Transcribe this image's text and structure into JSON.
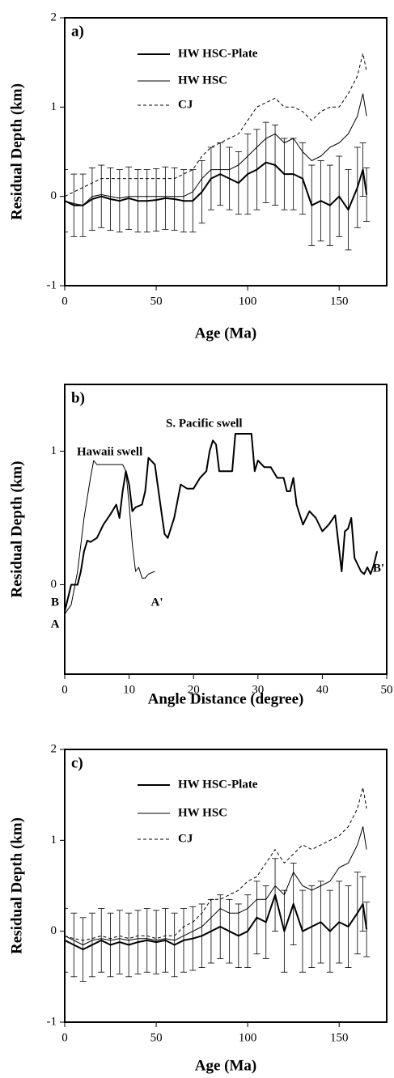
{
  "chart_data": [
    {
      "type": "line",
      "title": "a)",
      "xlabel": "Age (Ma)",
      "ylabel": "Residual Depth (km)",
      "xlim": [
        0,
        176
      ],
      "ylim": [
        -1,
        2
      ],
      "xticks": [
        0,
        50,
        100,
        150
      ],
      "yticks": [
        -1,
        0,
        1,
        2
      ],
      "x": [
        0,
        5,
        10,
        15,
        20,
        25,
        30,
        35,
        40,
        45,
        50,
        55,
        60,
        65,
        70,
        75,
        80,
        85,
        90,
        95,
        100,
        105,
        110,
        115,
        120,
        125,
        130,
        135,
        140,
        145,
        150,
        155,
        160,
        163,
        165
      ],
      "series": [
        {
          "name": "HW HSC-Plate",
          "color": "#000000",
          "linestyle": "solid",
          "values": [
            -0.05,
            -0.1,
            -0.1,
            -0.03,
            0,
            -0.03,
            -0.05,
            -0.02,
            -0.05,
            -0.05,
            -0.04,
            -0.02,
            -0.03,
            -0.05,
            -0.05,
            0.05,
            0.2,
            0.25,
            0.2,
            0.15,
            0.25,
            0.3,
            0.38,
            0.35,
            0.25,
            0.25,
            0.2,
            -0.1,
            -0.05,
            -0.1,
            0,
            -0.15,
            0.1,
            0.3,
            0.02
          ],
          "errors": [
            0.35,
            0.35,
            0.35,
            0.35,
            0.35,
            0.35,
            0.35,
            0.35,
            0.35,
            0.35,
            0.35,
            0.35,
            0.35,
            0.35,
            0.35,
            0.35,
            0.35,
            0.35,
            0.35,
            0.35,
            0.45,
            0.45,
            0.45,
            0.45,
            0.4,
            0.4,
            0.4,
            0.45,
            0.45,
            0.45,
            0.45,
            0.45,
            0.45,
            0.3,
            0.3
          ]
        },
        {
          "name": "HW HSC",
          "color": "#000000",
          "linestyle": "solid",
          "values": [
            -0.05,
            -0.08,
            -0.1,
            0,
            0.02,
            0,
            -0.02,
            0,
            0,
            0,
            0,
            0,
            0,
            0,
            0.05,
            0.2,
            0.3,
            0.3,
            0.3,
            0.35,
            0.45,
            0.55,
            0.65,
            0.7,
            0.6,
            0.65,
            0.5,
            0.4,
            0.45,
            0.55,
            0.6,
            0.7,
            0.9,
            1.15,
            0.9
          ]
        },
        {
          "name": "CJ",
          "color": "#000000",
          "linestyle": "dashed",
          "values": [
            0,
            0.05,
            0.1,
            0.15,
            0.2,
            0.2,
            0.2,
            0.2,
            0.2,
            0.2,
            0.2,
            0.2,
            0.2,
            0.25,
            0.3,
            0.45,
            0.55,
            0.6,
            0.65,
            0.7,
            0.85,
            1,
            1.05,
            1.1,
            1,
            1,
            0.95,
            0.85,
            0.95,
            1,
            1,
            1.15,
            1.35,
            1.6,
            1.4
          ]
        }
      ]
    },
    {
      "type": "line",
      "title": "b)",
      "xlabel": "Angle Distance (degree)",
      "ylabel": "Residual Depth (km)",
      "xlim": [
        0,
        50
      ],
      "ylim": [
        -0.67,
        1.5
      ],
      "xticks": [
        0,
        10,
        20,
        30,
        40,
        50
      ],
      "yticks": [
        0,
        1
      ],
      "annotations": [
        "Hawaii swell",
        "S. Pacific swell",
        "A",
        "A'",
        "B",
        "B'"
      ],
      "series": [
        {
          "color": "#000000",
          "linestyle": "solid",
          "x": [
            0,
            1,
            2,
            3,
            4,
            4.5,
            5,
            6,
            7,
            8,
            9,
            9.5,
            10,
            10.5,
            11,
            11.5,
            12,
            12.5,
            13,
            14
          ],
          "values": [
            -0.22,
            -0.15,
            0.1,
            0.5,
            0.8,
            0.93,
            0.9,
            0.9,
            0.9,
            0.9,
            0.9,
            0.85,
            0.6,
            0.3,
            0.1,
            0.13,
            0.05,
            0.05,
            0.08,
            0.1
          ]
        },
        {
          "color": "#000000",
          "linestyle": "solid",
          "x": [
            0,
            1,
            2,
            2.5,
            3,
            3.5,
            4,
            5,
            6,
            7,
            8,
            8.5,
            9,
            9.5,
            10,
            10.5,
            11,
            12,
            12.5,
            13,
            14,
            15,
            15.5,
            16,
            17,
            18,
            19,
            20,
            21,
            22,
            22.5,
            23,
            23.5,
            24,
            25,
            26,
            26.5,
            28,
            29,
            29.5,
            30,
            31,
            32,
            33,
            34,
            34.5,
            35,
            35.5,
            36,
            37,
            38,
            39,
            40,
            41,
            42,
            43,
            43.5,
            44,
            44.5,
            45,
            46,
            46.5,
            47,
            47.5,
            48,
            48.5
          ],
          "values": [
            -0.2,
            0,
            0,
            0.1,
            0.25,
            0.33,
            0.32,
            0.35,
            0.45,
            0.52,
            0.6,
            0.5,
            0.7,
            0.85,
            0.75,
            0.55,
            0.58,
            0.6,
            0.7,
            0.95,
            0.9,
            0.55,
            0.38,
            0.35,
            0.5,
            0.75,
            0.72,
            0.72,
            0.8,
            0.85,
            1,
            1.08,
            1.05,
            0.85,
            0.85,
            0.85,
            1.13,
            1.13,
            1.13,
            0.85,
            0.93,
            0.88,
            0.88,
            0.8,
            0.8,
            0.7,
            0.7,
            0.8,
            0.6,
            0.45,
            0.55,
            0.5,
            0.4,
            0.45,
            0.52,
            0.1,
            0.4,
            0.42,
            0.5,
            0.2,
            0.1,
            0.08,
            0.13,
            0.08,
            0.15,
            0.25
          ]
        }
      ]
    },
    {
      "type": "line",
      "title": "c)",
      "xlabel": "Age (Ma)",
      "ylabel": "Residual Depth (km)",
      "xlim": [
        0,
        176
      ],
      "ylim": [
        -1,
        2
      ],
      "xticks": [
        0,
        50,
        100,
        150
      ],
      "yticks": [
        -1,
        0,
        1,
        2
      ],
      "x": [
        0,
        5,
        10,
        15,
        20,
        25,
        30,
        35,
        40,
        45,
        50,
        55,
        60,
        65,
        70,
        75,
        80,
        85,
        90,
        95,
        100,
        105,
        110,
        115,
        120,
        125,
        130,
        135,
        140,
        145,
        150,
        155,
        160,
        163,
        165
      ],
      "series": [
        {
          "name": "HW HSC-Plate",
          "color": "#000000",
          "linestyle": "solid",
          "values": [
            -0.1,
            -0.15,
            -0.2,
            -0.15,
            -0.1,
            -0.15,
            -0.12,
            -0.15,
            -0.12,
            -0.1,
            -0.12,
            -0.1,
            -0.15,
            -0.1,
            -0.08,
            -0.05,
            0,
            0.05,
            0,
            -0.05,
            0,
            0.15,
            0.1,
            0.4,
            0,
            0.3,
            0,
            0.05,
            0.1,
            0,
            0.1,
            0.05,
            0.2,
            0.3,
            0.02
          ],
          "errors": [
            0.35,
            0.35,
            0.35,
            0.35,
            0.35,
            0.35,
            0.35,
            0.35,
            0.35,
            0.35,
            0.35,
            0.35,
            0.35,
            0.35,
            0.35,
            0.35,
            0.35,
            0.35,
            0.35,
            0.35,
            0.4,
            0.4,
            0.4,
            0.4,
            0.45,
            0.45,
            0.45,
            0.45,
            0.45,
            0.45,
            0.45,
            0.45,
            0.45,
            0.3,
            0.3
          ]
        },
        {
          "name": "HW HSC",
          "color": "#000000",
          "linestyle": "solid",
          "values": [
            -0.05,
            -0.1,
            -0.15,
            -0.1,
            -0.08,
            -0.1,
            -0.08,
            -0.1,
            -0.08,
            -0.08,
            -0.1,
            -0.08,
            -0.1,
            -0.05,
            0,
            0.05,
            0.15,
            0.25,
            0.2,
            0.2,
            0.25,
            0.35,
            0.35,
            0.5,
            0.4,
            0.65,
            0.5,
            0.45,
            0.5,
            0.55,
            0.7,
            0.75,
            0.95,
            1.15,
            0.9
          ]
        },
        {
          "name": "CJ",
          "color": "#000000",
          "linestyle": "dashed",
          "values": [
            -0.05,
            -0.08,
            -0.1,
            -0.08,
            -0.05,
            -0.08,
            -0.05,
            -0.08,
            -0.05,
            -0.05,
            -0.08,
            -0.05,
            -0.05,
            0.05,
            0.1,
            0.2,
            0.35,
            0.35,
            0.4,
            0.45,
            0.55,
            0.6,
            0.75,
            0.9,
            0.75,
            0.85,
            0.95,
            0.9,
            0.95,
            1,
            1.05,
            1.15,
            1.35,
            1.58,
            1.35
          ]
        }
      ]
    }
  ]
}
